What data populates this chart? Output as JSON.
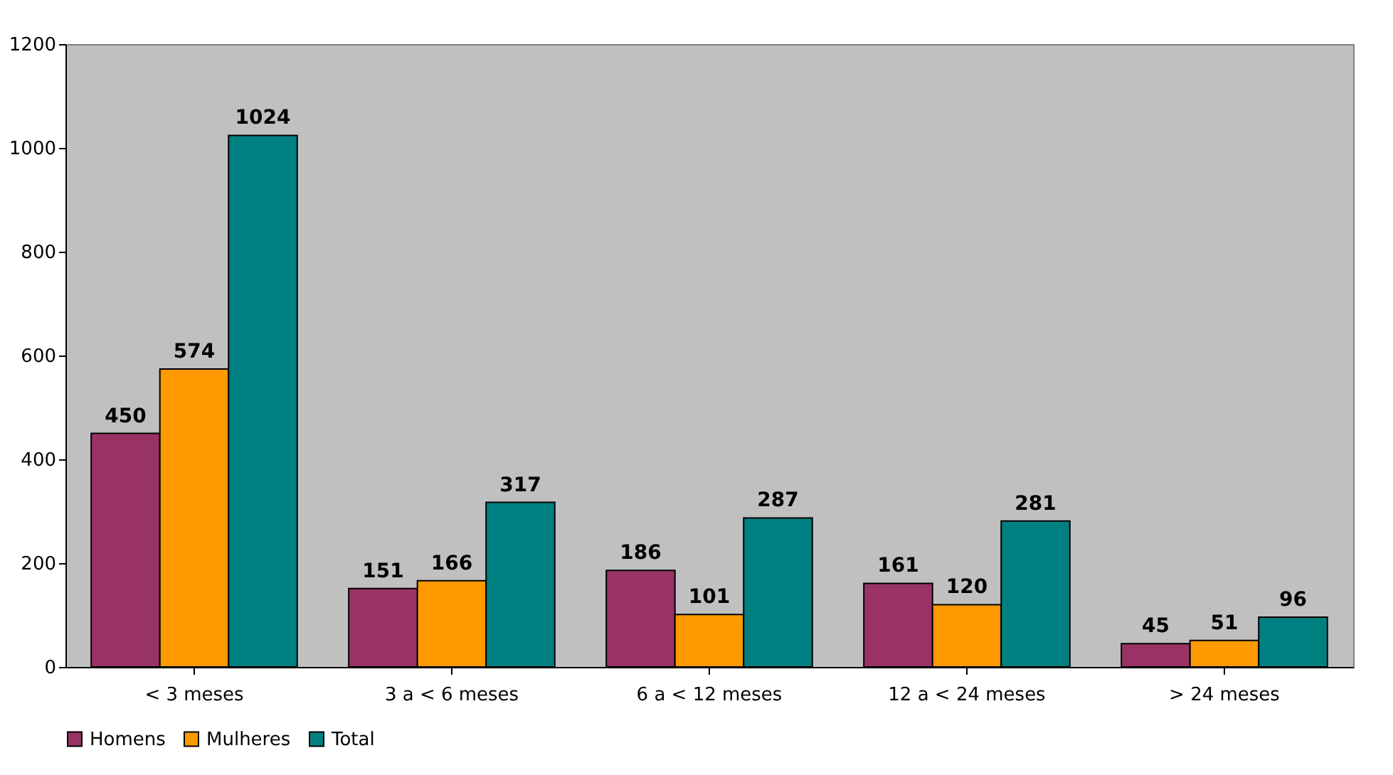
{
  "chart_data": {
    "type": "bar",
    "categories": [
      "< 3 meses",
      "3 a < 6 meses",
      "6 a < 12 meses",
      "12 a < 24 meses",
      "> 24 meses"
    ],
    "series": [
      {
        "name": "Homens",
        "color": "#993366",
        "values": [
          450,
          151,
          186,
          161,
          45
        ]
      },
      {
        "name": "Mulheres",
        "color": "#ff9900",
        "values": [
          574,
          166,
          101,
          120,
          51
        ]
      },
      {
        "name": "Total",
        "color": "#008080",
        "values": [
          1024,
          317,
          287,
          281,
          96
        ]
      }
    ],
    "ylim": [
      0,
      1200
    ],
    "yticks": [
      0,
      200,
      400,
      600,
      800,
      1000,
      1200
    ],
    "grid": false,
    "legend": "bottom",
    "data_labels": true
  }
}
